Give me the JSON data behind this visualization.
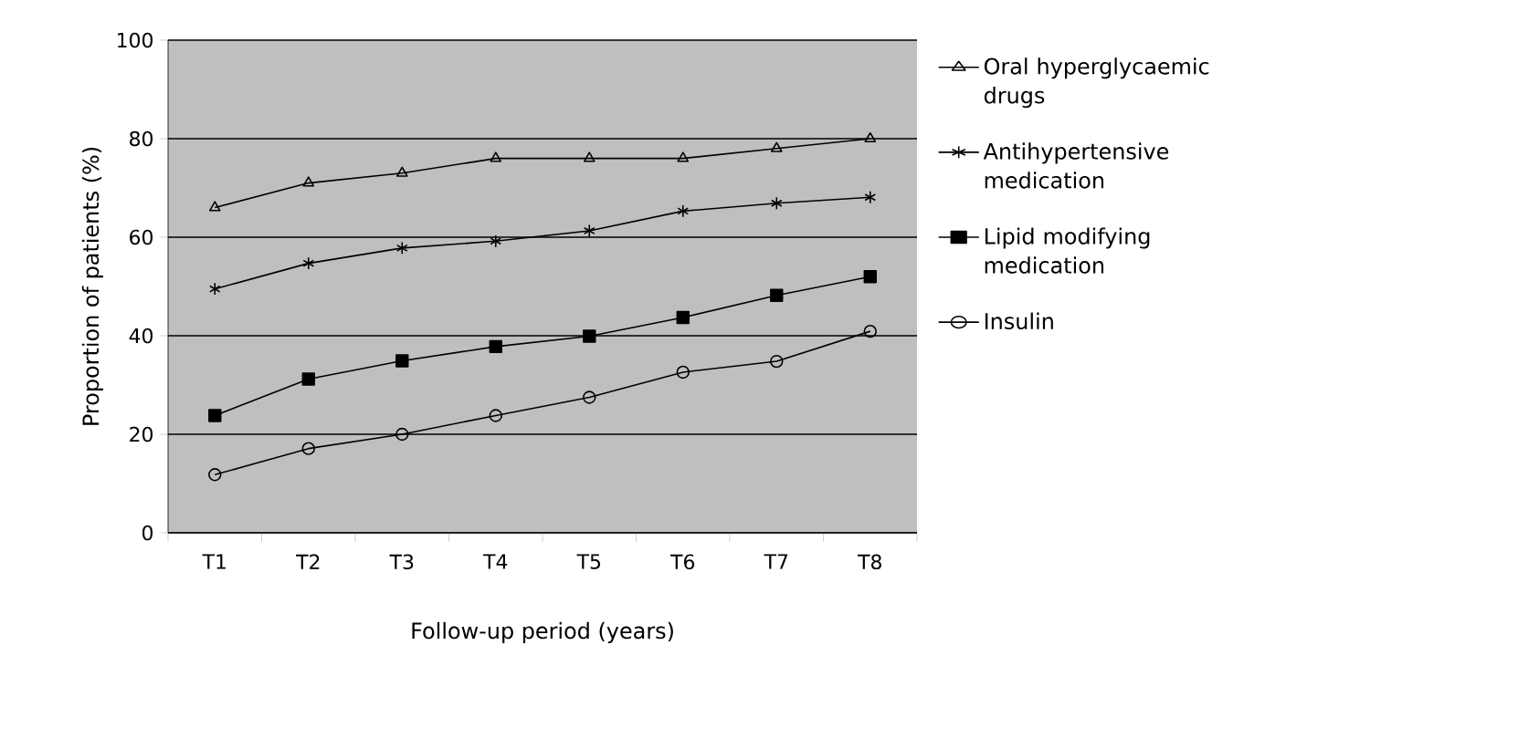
{
  "chart_data": {
    "type": "line",
    "xlabel": "Follow-up period (years)",
    "ylabel": "Proportion of patients (%)",
    "categories": [
      "T1",
      "T2",
      "T3",
      "T4",
      "T5",
      "T6",
      "T7",
      "T8"
    ],
    "ylim": [
      0,
      100
    ],
    "yticks": [
      0,
      20,
      40,
      60,
      80,
      100
    ],
    "grid": "y",
    "legend": "right",
    "line_style": "solid",
    "series": [
      {
        "name": "Oral hyperglycaemic drugs",
        "color": "#000000",
        "marker": "triangle",
        "values": [
          66,
          71,
          73,
          76,
          76,
          76,
          78,
          80
        ]
      },
      {
        "name": "Antihypertensive medication",
        "color": "#000000",
        "marker": "cross",
        "values": [
          49.5,
          54.7,
          57.8,
          59.2,
          61.3,
          65.3,
          66.9,
          68.1
        ]
      },
      {
        "name": "Lipid modifying medication",
        "color": "#000000",
        "marker": "square",
        "values": [
          23.8,
          31.2,
          34.9,
          37.8,
          39.9,
          43.7,
          48.2,
          52
        ]
      },
      {
        "name": "Insulin",
        "color": "#000000",
        "marker": "circle",
        "values": [
          11.8,
          17.1,
          20,
          23.8,
          27.5,
          32.6,
          34.8,
          40.9
        ]
      }
    ]
  }
}
